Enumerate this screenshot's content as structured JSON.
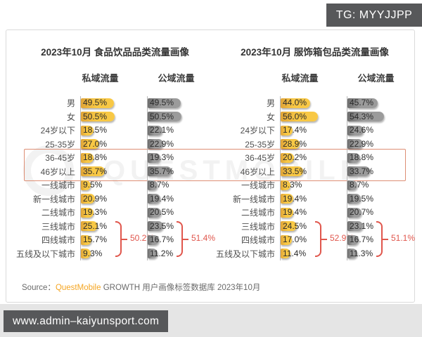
{
  "badge": {
    "text": "TG: MYYJJPP"
  },
  "footer_bar": {
    "url": "www.admin–kaiyunsport.com"
  },
  "source": {
    "prefix": "Source：",
    "brand": "QuestMobile",
    "rest": " GROWTH 用户画像标签数据库 2023年10月"
  },
  "watermark": {
    "text": "QUESTMOBILE"
  },
  "colors": {
    "private_bar": "#f8c845",
    "public_bar": "#8f8f8f",
    "bracket_red": "#e0564c",
    "highlight_border": "#dd8e74",
    "badge_bg": "#57585a",
    "brand_orange": "#f5a623"
  },
  "highlight": {
    "rows": [
      "36-45岁",
      "46岁以上"
    ]
  },
  "chart_data": [
    {
      "type": "bar",
      "title": "2023年10月 食品饮品品类流量画像",
      "unit": "%",
      "categories": [
        "男",
        "女",
        "24岁以下",
        "25-35岁",
        "36-45岁",
        "46岁以上",
        "一线城市",
        "新一线城市",
        "二线城市",
        "三线城市",
        "四线城市",
        "五线及以下城市"
      ],
      "series": [
        {
          "name": "私域流量",
          "values": [
            49.5,
            50.5,
            18.5,
            27.0,
            18.8,
            35.7,
            9.5,
            20.9,
            19.3,
            25.1,
            15.7,
            9.3
          ]
        },
        {
          "name": "公域流量",
          "values": [
            49.5,
            50.5,
            22.1,
            22.9,
            19.3,
            35.7,
            8.7,
            19.4,
            20.5,
            23.5,
            16.7,
            11.2
          ]
        }
      ],
      "brackets": [
        {
          "series_index": 0,
          "from": "三线城市",
          "to": "五线及以下城市",
          "label": "50.2%"
        },
        {
          "series_index": 1,
          "from": "三线城市",
          "to": "五线及以下城市",
          "label": "51.4%"
        }
      ]
    },
    {
      "type": "bar",
      "title": "2023年10月 服饰箱包品类流量画像",
      "unit": "%",
      "categories": [
        "男",
        "女",
        "24岁以下",
        "25-35岁",
        "36-45岁",
        "46岁以上",
        "一线城市",
        "新一线城市",
        "二线城市",
        "三线城市",
        "四线城市",
        "五线及以下城市"
      ],
      "series": [
        {
          "name": "私域流量",
          "values": [
            44.0,
            56.0,
            17.4,
            28.9,
            20.2,
            33.5,
            8.3,
            19.4,
            19.4,
            24.5,
            17.0,
            11.4
          ]
        },
        {
          "name": "公域流量",
          "values": [
            45.7,
            54.3,
            24.6,
            22.9,
            18.8,
            33.7,
            8.7,
            19.5,
            20.7,
            23.1,
            16.7,
            11.3
          ]
        }
      ],
      "brackets": [
        {
          "series_index": 0,
          "from": "三线城市",
          "to": "五线及以下城市",
          "label": "52.9%"
        },
        {
          "series_index": 1,
          "from": "三线城市",
          "to": "五线及以下城市",
          "label": "51.1%"
        }
      ]
    }
  ]
}
